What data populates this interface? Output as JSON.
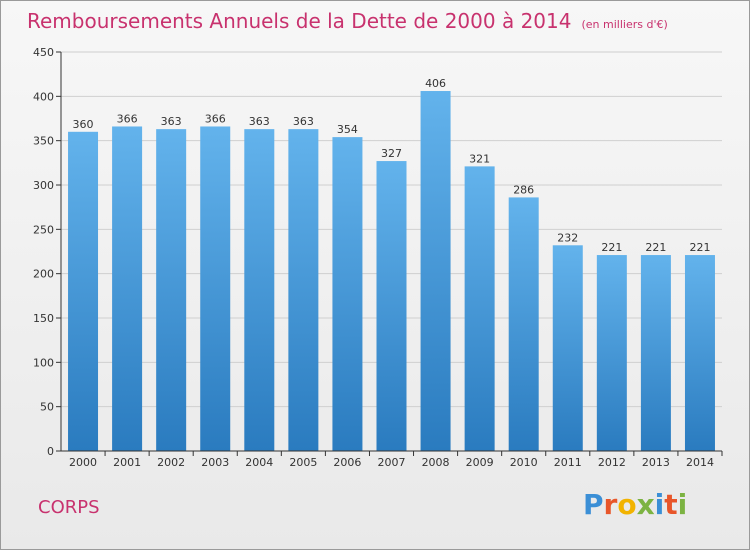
{
  "header": {
    "title": "Remboursements Annuels de la Dette de 2000 à 2014",
    "unit": "(en milliers d'€)"
  },
  "footer": {
    "commune": "CORPS",
    "brand": "Proxiti"
  },
  "colors": {
    "title": "#c8326e",
    "bar_top": "#63b3ec",
    "bar_bottom": "#2a7bbf",
    "axis": "#333333",
    "grid": "#cfcfcf"
  },
  "chart_data": {
    "type": "bar",
    "title": "Remboursements Annuels de la Dette de 2000 à 2014",
    "xlabel": "",
    "ylabel": "",
    "categories": [
      "2000",
      "2001",
      "2002",
      "2003",
      "2004",
      "2005",
      "2006",
      "2007",
      "2008",
      "2009",
      "2010",
      "2011",
      "2012",
      "2013",
      "2014"
    ],
    "values": [
      360,
      366,
      363,
      366,
      363,
      363,
      354,
      327,
      406,
      321,
      286,
      232,
      221,
      221,
      221
    ],
    "ylim": [
      0,
      450
    ],
    "yticks": [
      0,
      50,
      100,
      150,
      200,
      250,
      300,
      350,
      400,
      450
    ],
    "grid": true,
    "data_labels": true
  }
}
